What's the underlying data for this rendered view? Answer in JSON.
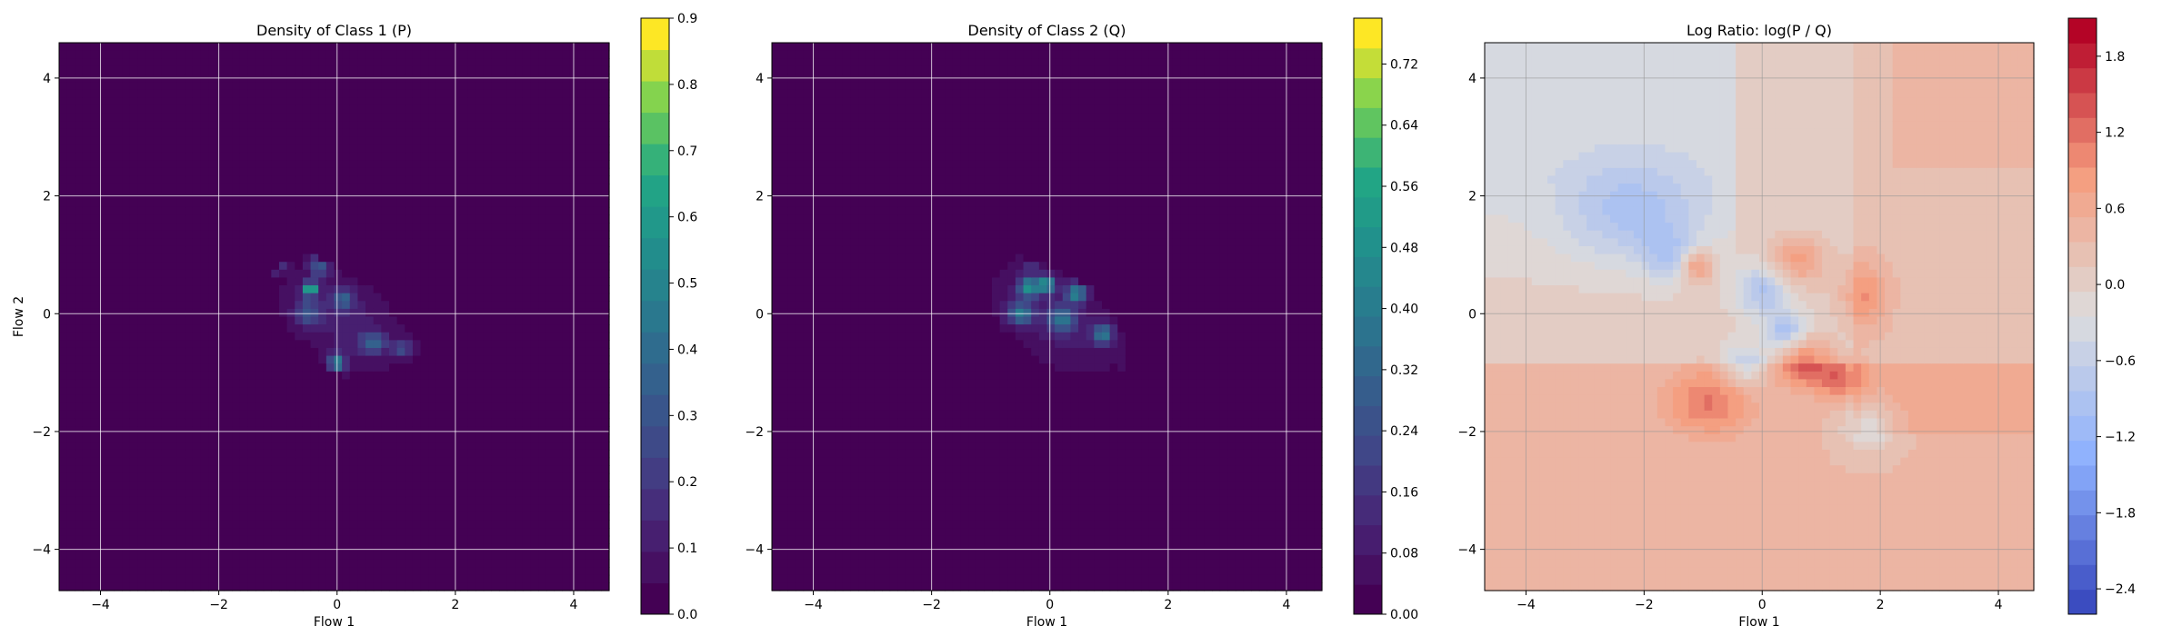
{
  "chart_data": [
    {
      "type": "heatmap",
      "subtype": "filled-contour",
      "title": "Density of Class 1 (P)",
      "xlabel": "Flow 1",
      "ylabel": "Flow 2",
      "xlim": [
        -4.7,
        4.6
      ],
      "ylim": [
        -4.7,
        4.6
      ],
      "xticks": [
        -4,
        -2,
        0,
        2,
        4
      ],
      "yticks": [
        -4,
        -2,
        0,
        2,
        4
      ],
      "xtick_labels": [
        "−4",
        "−2",
        "0",
        "2",
        "4"
      ],
      "ytick_labels": [
        "−4",
        "−2",
        "0",
        "2",
        "4"
      ],
      "grid": true,
      "colormap": "viridis",
      "colorbar": {
        "min": 0.0,
        "max": 0.9,
        "levels": 19,
        "ticks": [
          0,
          0.1,
          0.2,
          0.3,
          0.4,
          0.5,
          0.6,
          0.7,
          0.8,
          0.9
        ],
        "tick_labels": [
          "0.0",
          "0.1",
          "0.2",
          "0.3",
          "0.4",
          "0.5",
          "0.6",
          "0.7",
          "0.8",
          "0.9"
        ]
      },
      "density_blobs": [
        {
          "x": 0.1,
          "y": -0.1,
          "sx": 0.85,
          "sy": 0.5,
          "rot": -35,
          "amp": 0.12
        },
        {
          "x": -0.45,
          "y": 0.42,
          "sx": 0.08,
          "sy": 0.08,
          "rot": 0,
          "amp": 0.7
        },
        {
          "x": -1.05,
          "y": 0.9,
          "sx": 0.12,
          "sy": 0.12,
          "rot": 0,
          "amp": 0.35
        },
        {
          "x": 0.0,
          "y": -0.85,
          "sx": 0.1,
          "sy": 0.12,
          "rot": 0,
          "amp": 0.45
        },
        {
          "x": -0.3,
          "y": 0.8,
          "sx": 0.12,
          "sy": 0.12,
          "rot": 0,
          "amp": 0.3
        },
        {
          "x": 0.1,
          "y": 0.25,
          "sx": 0.12,
          "sy": 0.12,
          "rot": 0,
          "amp": 0.3
        },
        {
          "x": 0.6,
          "y": -0.5,
          "sx": 0.15,
          "sy": 0.12,
          "rot": 0,
          "amp": 0.3
        },
        {
          "x": 1.1,
          "y": -0.6,
          "sx": 0.12,
          "sy": 0.1,
          "rot": 0,
          "amp": 0.25
        },
        {
          "x": -0.5,
          "y": 0.0,
          "sx": 0.15,
          "sy": 0.15,
          "rot": 0,
          "amp": 0.25
        }
      ]
    },
    {
      "type": "heatmap",
      "subtype": "filled-contour",
      "title": "Density of Class 2 (Q)",
      "xlabel": "Flow 1",
      "ylabel": "",
      "xlim": [
        -4.7,
        4.6
      ],
      "ylim": [
        -4.7,
        4.6
      ],
      "xticks": [
        -4,
        -2,
        0,
        2,
        4
      ],
      "yticks": [
        -4,
        -2,
        0,
        2,
        4
      ],
      "xtick_labels": [
        "−4",
        "−2",
        "0",
        "2",
        "4"
      ],
      "ytick_labels": [
        "−4",
        "−2",
        "0",
        "2",
        "4"
      ],
      "grid": true,
      "colormap": "viridis",
      "colorbar": {
        "min": 0.0,
        "max": 0.78,
        "levels": 20,
        "ticks": [
          0,
          0.08,
          0.16,
          0.24,
          0.32,
          0.4,
          0.48,
          0.56,
          0.64,
          0.72
        ],
        "tick_labels": [
          "0.00",
          "0.08",
          "0.16",
          "0.24",
          "0.32",
          "0.40",
          "0.48",
          "0.56",
          "0.64",
          "0.72"
        ]
      },
      "density_blobs": [
        {
          "x": 0.1,
          "y": -0.1,
          "sx": 0.9,
          "sy": 0.5,
          "rot": -38,
          "amp": 0.1
        },
        {
          "x": -0.35,
          "y": 0.45,
          "sx": 0.12,
          "sy": 0.12,
          "rot": 0,
          "amp": 0.45
        },
        {
          "x": 0.45,
          "y": 0.35,
          "sx": 0.12,
          "sy": 0.12,
          "rot": 0,
          "amp": 0.4
        },
        {
          "x": -0.05,
          "y": 0.5,
          "sx": 0.1,
          "sy": 0.1,
          "rot": 0,
          "amp": 0.45
        },
        {
          "x": 0.9,
          "y": -0.35,
          "sx": 0.12,
          "sy": 0.12,
          "rot": 0,
          "amp": 0.35
        },
        {
          "x": -0.5,
          "y": 0.0,
          "sx": 0.15,
          "sy": 0.12,
          "rot": 0,
          "amp": 0.35
        },
        {
          "x": 0.2,
          "y": -0.1,
          "sx": 0.15,
          "sy": 0.15,
          "rot": 0,
          "amp": 0.3
        },
        {
          "x": -0.3,
          "y": 0.95,
          "sx": 0.12,
          "sy": 0.12,
          "rot": 0,
          "amp": 0.2
        },
        {
          "x": 1.5,
          "y": -0.8,
          "sx": 0.15,
          "sy": 0.12,
          "rot": 0,
          "amp": 0.18
        }
      ]
    },
    {
      "type": "heatmap",
      "subtype": "filled-contour",
      "title": "Log Ratio: log(P / Q)",
      "xlabel": "Flow 1",
      "ylabel": "",
      "xlim": [
        -4.7,
        4.6
      ],
      "ylim": [
        -4.7,
        4.6
      ],
      "xticks": [
        -4,
        -2,
        0,
        2,
        4
      ],
      "yticks": [
        -4,
        -2,
        0,
        2,
        4
      ],
      "xtick_labels": [
        "−4",
        "−2",
        "0",
        "2",
        "4"
      ],
      "ytick_labels": [
        "−4",
        "−2",
        "0",
        "2",
        "4"
      ],
      "grid": true,
      "colormap": "coolwarm",
      "colorbar": {
        "min": -2.6,
        "max": 2.1,
        "levels": 24,
        "ticks": [
          -2.4,
          -1.8,
          -1.2,
          -0.6,
          0.0,
          0.6,
          1.2,
          1.8
        ],
        "tick_labels": [
          "−2.4",
          "−1.8",
          "−1.2",
          "−0.6",
          "0.0",
          "0.6",
          "1.2",
          "1.8"
        ]
      },
      "background_trend": "positive toward lower-left and right, negative toward upper-left",
      "ratio_blobs": [
        {
          "x": -2.2,
          "y": 1.7,
          "sx": 0.8,
          "sy": 0.6,
          "amp": -0.7
        },
        {
          "x": -1.1,
          "y": 0.8,
          "sx": 0.2,
          "sy": 0.2,
          "amp": 1.0
        },
        {
          "x": -0.9,
          "y": -1.5,
          "sx": 0.5,
          "sy": 0.4,
          "amp": 0.8
        },
        {
          "x": 0.7,
          "y": -0.8,
          "sx": 0.3,
          "sy": 0.3,
          "amp": 1.1
        },
        {
          "x": 0.6,
          "y": 0.9,
          "sx": 0.35,
          "sy": 0.3,
          "amp": 0.8
        },
        {
          "x": 1.7,
          "y": 0.3,
          "sx": 0.3,
          "sy": 0.4,
          "amp": 0.7
        },
        {
          "x": 1.3,
          "y": -1.1,
          "sx": 0.25,
          "sy": 0.25,
          "amp": 0.9
        },
        {
          "x": 0.0,
          "y": 0.4,
          "sx": 0.3,
          "sy": 0.3,
          "amp": -0.9
        },
        {
          "x": 0.4,
          "y": -0.3,
          "sx": 0.25,
          "sy": 0.25,
          "amp": -1.0
        },
        {
          "x": -0.3,
          "y": -0.9,
          "sx": 0.25,
          "sy": 0.25,
          "amp": -0.8
        },
        {
          "x": 1.8,
          "y": -1.9,
          "sx": 0.3,
          "sy": 0.3,
          "amp": -0.7
        },
        {
          "x": -1.6,
          "y": 1.0,
          "sx": 0.3,
          "sy": 0.3,
          "amp": -0.6
        }
      ]
    }
  ]
}
